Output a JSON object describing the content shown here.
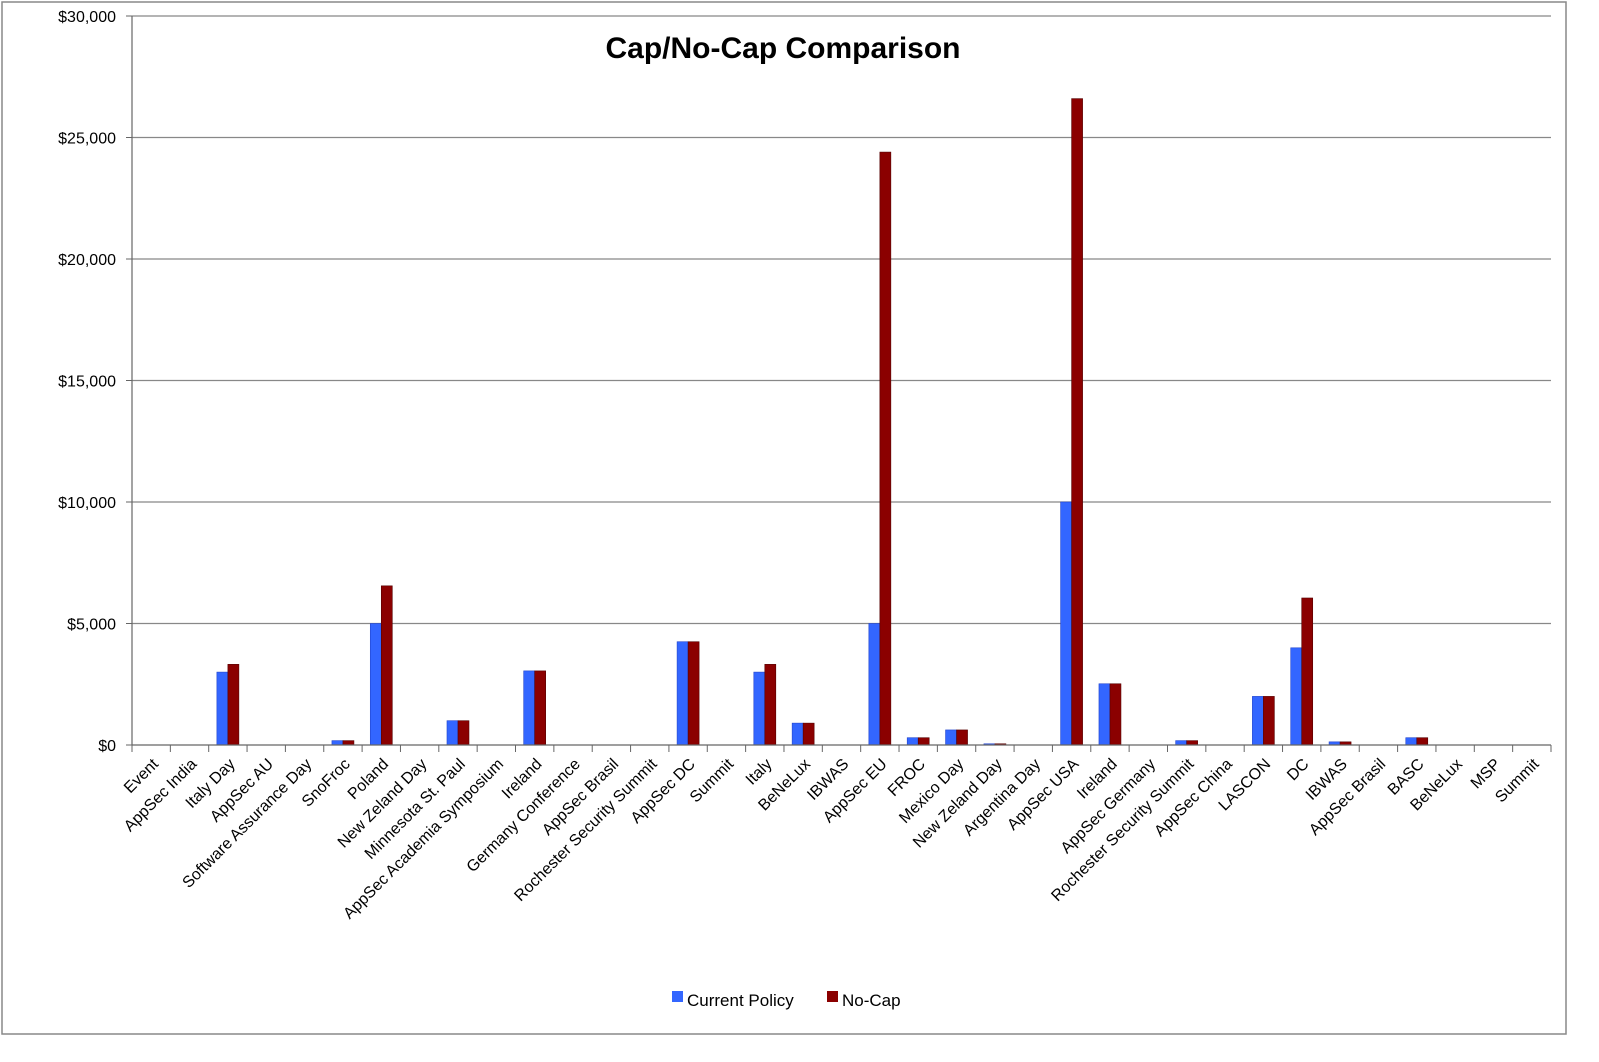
{
  "chart_data": {
    "type": "bar",
    "title": "Cap/No-Cap Comparison",
    "xlabel": "",
    "ylabel": "",
    "ylim": [
      0,
      30000
    ],
    "y_ticks": [
      0,
      5000,
      10000,
      15000,
      20000,
      25000,
      30000
    ],
    "y_tick_labels": [
      "$0",
      "$5,000",
      "$10,000",
      "$15,000",
      "$20,000",
      "$25,000",
      "$30,000"
    ],
    "grid": true,
    "legend_position": "bottom",
    "categories": [
      "Event",
      "AppSec India",
      "Italy Day",
      "AppSec AU",
      "Software Assurance Day",
      "SnoFroc",
      "Poland",
      "New Zeland Day",
      "Minnesota St. Paul",
      "AppSec Academia Symposium",
      "Ireland",
      "Germany Conference",
      "AppSec Brasil",
      "Rochester Security Summit",
      "AppSec DC",
      "Summit",
      "Italy",
      "BeNeLux",
      "IBWAS",
      "AppSec EU",
      "FROC",
      "Mexico Day",
      "New Zeland Day",
      "Argentina Day",
      "AppSec USA",
      "Ireland",
      "AppSec Germany",
      "Rochester Security Summit",
      "AppSec China",
      "LASCON",
      "DC",
      "IBWAS",
      "AppSec Brasil",
      "BASC",
      "BeNeLux",
      "MSP",
      "Summit"
    ],
    "series": [
      {
        "name": "Current Policy",
        "color": "#3366ff",
        "values": [
          0,
          0,
          3000,
          0,
          0,
          180,
          5000,
          0,
          1000,
          0,
          3050,
          0,
          0,
          0,
          4250,
          0,
          3000,
          900,
          0,
          5000,
          300,
          620,
          50,
          0,
          10000,
          2520,
          0,
          180,
          0,
          2000,
          4000,
          130,
          0,
          300,
          0,
          0,
          0
        ]
      },
      {
        "name": "No-Cap",
        "color": "#8b0000",
        "values": [
          0,
          0,
          3320,
          0,
          0,
          180,
          6550,
          0,
          1000,
          0,
          3050,
          0,
          0,
          0,
          4250,
          0,
          3320,
          900,
          0,
          24400,
          300,
          620,
          50,
          0,
          26600,
          2520,
          0,
          180,
          0,
          2000,
          6050,
          130,
          0,
          300,
          0,
          0,
          0
        ]
      }
    ]
  }
}
